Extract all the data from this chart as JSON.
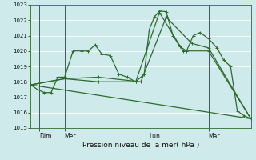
{
  "xlabel": "Pression niveau de la mer( hPa )",
  "ylim": [
    1015,
    1023
  ],
  "yticks": [
    1015,
    1016,
    1017,
    1018,
    1019,
    1020,
    1021,
    1022,
    1023
  ],
  "xlim": [
    0,
    13.0
  ],
  "bg_color": "#ceeaea",
  "grid_color": "#ffffff",
  "line_color": "#2d6a2d",
  "day_labels": [
    "Dim",
    "Mer",
    "Lun",
    "Mar"
  ],
  "day_positions": [
    0.5,
    2.0,
    7.0,
    10.5
  ],
  "vline_positions": [
    0.5,
    2.0,
    7.0,
    10.5
  ],
  "series": [
    {
      "x": [
        0.0,
        0.4,
        0.8,
        1.2,
        1.6,
        2.0,
        2.5,
        3.0,
        3.4,
        3.8,
        4.2,
        4.7,
        5.2,
        5.7,
        6.2,
        6.7,
        7.0,
        7.3,
        7.6,
        8.0,
        8.4,
        8.8,
        9.2,
        9.6,
        10.0,
        10.5,
        11.0,
        11.4,
        11.8,
        12.2,
        12.6,
        13.0
      ],
      "y": [
        1017.8,
        1017.5,
        1017.3,
        1017.3,
        1018.3,
        1018.3,
        1020.0,
        1020.0,
        1020.0,
        1020.4,
        1019.8,
        1019.7,
        1018.5,
        1018.3,
        1018.0,
        1018.5,
        1021.4,
        1022.2,
        1022.6,
        1022.55,
        1021.0,
        1020.3,
        1020.0,
        1021.0,
        1021.2,
        1020.8,
        1020.2,
        1019.4,
        1019.0,
        1016.1,
        1015.8,
        1015.6
      ]
    },
    {
      "x": [
        0.0,
        2.0,
        4.0,
        6.2,
        7.6,
        9.0,
        10.5,
        13.0
      ],
      "y": [
        1017.8,
        1018.2,
        1018.0,
        1018.0,
        1022.5,
        1020.0,
        1020.0,
        1015.6
      ]
    },
    {
      "x": [
        0.0,
        2.0,
        4.0,
        6.5,
        8.0,
        9.5,
        10.5,
        13.0
      ],
      "y": [
        1017.8,
        1018.2,
        1018.3,
        1018.0,
        1022.2,
        1020.5,
        1020.2,
        1015.6
      ]
    },
    {
      "x": [
        0.0,
        13.0
      ],
      "y": [
        1017.8,
        1015.6
      ]
    }
  ]
}
